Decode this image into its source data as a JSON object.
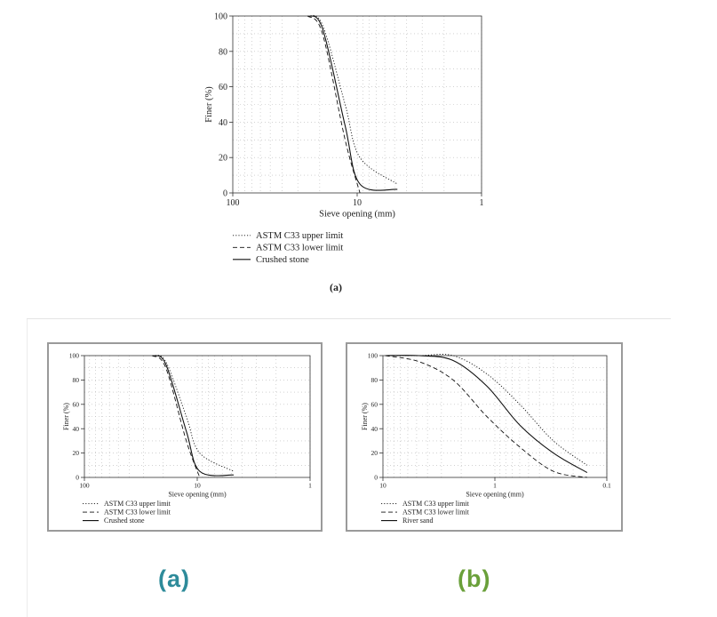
{
  "chart_data": [
    {
      "type": "line",
      "panel": "top",
      "xlabel": "Sieve opening (mm)",
      "ylabel": "Finer (%)",
      "x_scale": "log",
      "x_reversed": true,
      "xlim": [
        100,
        1
      ],
      "ylim": [
        0,
        100
      ],
      "x_ticks": [
        100,
        10,
        1
      ],
      "y_ticks": [
        0,
        20,
        40,
        60,
        80,
        100
      ],
      "grid": true,
      "legend_position": "below",
      "series": [
        {
          "name": "ASTM C33 upper limit",
          "style": "dotted",
          "x": [
            25,
            19,
            12.5,
            9.5,
            4.75
          ],
          "y": [
            100,
            95,
            50,
            20,
            5
          ]
        },
        {
          "name": "ASTM C33 lower limit",
          "style": "dashed",
          "x": [
            25,
            19,
            12.5,
            9.5
          ],
          "y": [
            100,
            90,
            30,
            0
          ]
        },
        {
          "name": "Crushed stone",
          "style": "solid",
          "x": [
            25,
            19,
            12.5,
            9.5,
            4.75
          ],
          "y": [
            100,
            93,
            38,
            5,
            2
          ]
        }
      ],
      "caption": "(a)"
    },
    {
      "type": "line",
      "panel": "a",
      "xlabel": "Sieve opening (mm)",
      "ylabel": "Finer (%)",
      "x_scale": "log",
      "x_reversed": true,
      "xlim": [
        100,
        1
      ],
      "ylim": [
        0,
        100
      ],
      "x_ticks": [
        100,
        10,
        1
      ],
      "y_ticks": [
        0,
        20,
        40,
        60,
        80,
        100
      ],
      "grid": true,
      "legend_position": "below",
      "series": [
        {
          "name": "ASTM C33 upper limit",
          "style": "dotted",
          "x": [
            25,
            19,
            12.5,
            9.5,
            4.75
          ],
          "y": [
            100,
            95,
            50,
            20,
            5
          ]
        },
        {
          "name": "ASTM C33 lower limit",
          "style": "dashed",
          "x": [
            25,
            19,
            12.5,
            9.5
          ],
          "y": [
            100,
            90,
            30,
            0
          ]
        },
        {
          "name": "Crushed stone",
          "style": "solid",
          "x": [
            25,
            19,
            12.5,
            9.5,
            4.75
          ],
          "y": [
            100,
            93,
            38,
            5,
            2
          ]
        }
      ],
      "caption": "(a)"
    },
    {
      "type": "line",
      "panel": "b",
      "xlabel": "Sieve opening (mm)",
      "ylabel": "Finer (%)",
      "x_scale": "log",
      "x_reversed": true,
      "xlim": [
        10,
        0.1
      ],
      "ylim": [
        0,
        100
      ],
      "x_ticks": [
        10,
        1,
        0.1
      ],
      "y_ticks": [
        0,
        20,
        40,
        60,
        80,
        100
      ],
      "grid": true,
      "legend_position": "below",
      "series": [
        {
          "name": "ASTM C33 upper limit",
          "style": "dotted",
          "x": [
            9.5,
            4.75,
            2.36,
            1.18,
            0.6,
            0.3,
            0.15
          ],
          "y": [
            100,
            100,
            100,
            85,
            60,
            30,
            10
          ]
        },
        {
          "name": "ASTM C33 lower limit",
          "style": "dashed",
          "x": [
            9.5,
            4.75,
            2.36,
            1.18,
            0.6,
            0.3,
            0.15
          ],
          "y": [
            100,
            95,
            80,
            50,
            25,
            5,
            0
          ]
        },
        {
          "name": "River sand",
          "style": "solid",
          "x": [
            9.5,
            4.75,
            2.36,
            1.18,
            0.6,
            0.3,
            0.15
          ],
          "y": [
            100,
            100,
            96,
            75,
            43,
            20,
            4
          ]
        }
      ],
      "caption": "(b)"
    }
  ],
  "colors": {
    "panel_a_label": "#2e8b9a",
    "panel_b_label": "#6aa03a",
    "frame": "#9a9a9a"
  }
}
